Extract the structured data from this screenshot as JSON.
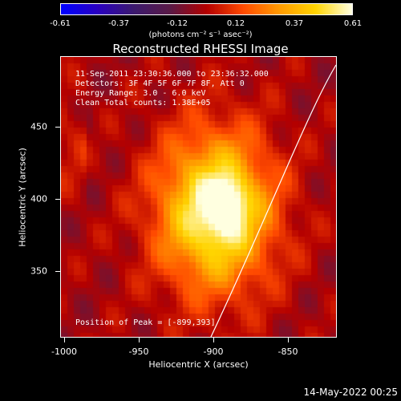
{
  "colorbar": {
    "ticks": [
      "-0.61",
      "-0.37",
      "-0.12",
      "0.12",
      "0.37",
      "0.61"
    ],
    "units": "(photons cm⁻² s⁻¹ asec⁻²)",
    "colormap": [
      "#0000ff",
      "#2a00c0",
      "#3c1a6e",
      "#5a1a46",
      "#b40000",
      "#ff4a00",
      "#ff9a00",
      "#ffd400",
      "#ffffe0"
    ]
  },
  "title": "Reconstructed RHESSI Image",
  "info": {
    "time_range": "11-Sep-2011 23:30:36.000 to 23:36:32.000",
    "detectors": "Detectors: 3F 4F 5F 6F 7F 8F, Att 0",
    "energy": "Energy Range: 3.0 - 6.0 keV",
    "clean": "Clean    Total counts: 1.38E+05",
    "peak": "Position of Peak = [-899,393]"
  },
  "axes": {
    "xlabel": "Heliocentric X (arcsec)",
    "ylabel": "Heliocentric Y (arcsec)",
    "xticks": [
      "-1000",
      "-950",
      "-900",
      "-850"
    ],
    "yticks": [
      "450",
      "400",
      "350"
    ]
  },
  "image": {
    "x_range": [
      -1000,
      -815
    ],
    "y_range": [
      300,
      490
    ],
    "peak": {
      "x": -899,
      "y": 393
    }
  },
  "footer": "14-May-2022 00:25"
}
